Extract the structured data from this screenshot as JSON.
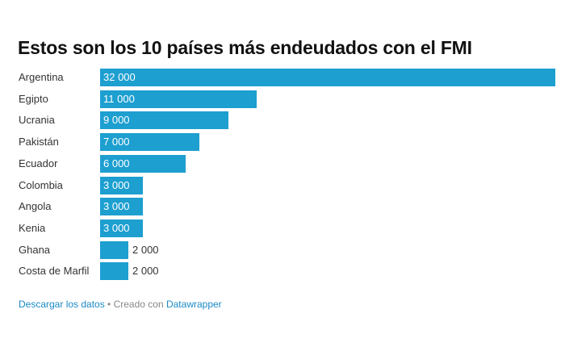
{
  "chart_data": {
    "type": "bar",
    "orientation": "horizontal",
    "title": "Estos son los 10 países más endeudados con el FMI",
    "categories": [
      "Argentina",
      "Egipto",
      "Ucrania",
      "Pakistán",
      "Ecuador",
      "Colombia",
      "Angola",
      "Kenia",
      "Ghana",
      "Costa de Marfil"
    ],
    "values": [
      32000,
      11000,
      9000,
      7000,
      6000,
      3000,
      3000,
      3000,
      2000,
      2000
    ],
    "value_labels": [
      "32 000",
      "11 000",
      "9 000",
      "7 000",
      "6 000",
      "3 000",
      "3 000",
      "3 000",
      "2 000",
      "2 000"
    ],
    "xlim": [
      0,
      32000
    ],
    "grid": false,
    "bar_color": "#1d9fd0"
  },
  "footer": {
    "download_link": "Descargar los datos",
    "separator": " • Creado con ",
    "datawrapper_link": "Datawrapper"
  }
}
